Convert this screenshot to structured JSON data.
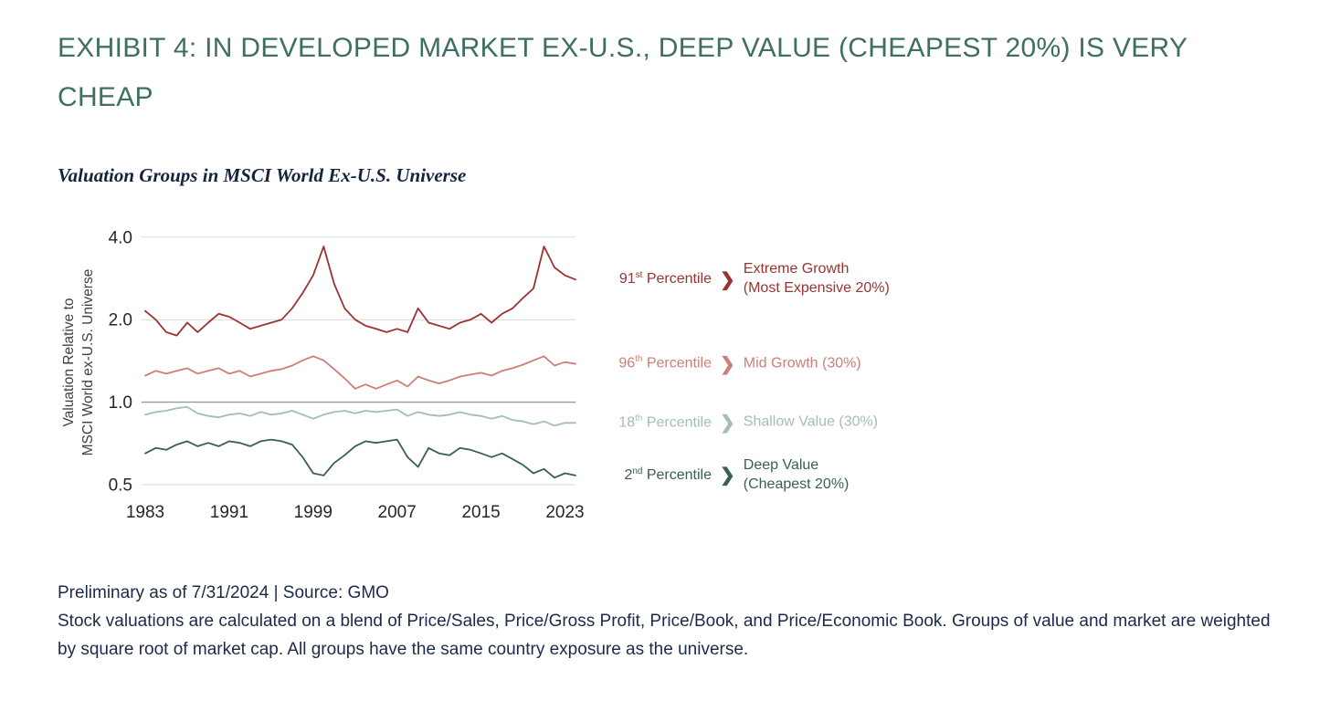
{
  "title": "EXHIBIT 4: IN DEVELOPED MARKET EX-U.S., DEEP VALUE (CHEAPEST 20%) IS VERY CHEAP",
  "subtitle": "Valuation Groups in MSCI World Ex-U.S. Universe",
  "footer": {
    "line1": "Preliminary as of 7/31/2024 | Source: GMO",
    "line2": "Stock valuations are calculated on a blend of Price/Sales, Price/Gross Profit, Price/Book, and Price/Economic Book. Groups of value and market are weighted by square root of market cap. All groups have the same country exposure as the universe."
  },
  "icons": {
    "chevron": "❯"
  },
  "chart_data": {
    "type": "line",
    "title": "Valuation Groups in MSCI World Ex-U.S. Universe",
    "ylabel": "Valuation Relative to MSCI World ex-U.S. Universe",
    "ylabel_lines": [
      "Valuation Relative to",
      "MSCI World ex-U.S. Universe"
    ],
    "y_scale": "log",
    "ylim": [
      0.47,
      4.15
    ],
    "yticks": [
      4.0,
      2.0,
      1.0,
      0.5
    ],
    "xlim": [
      1983,
      2024
    ],
    "xticks": [
      1983,
      1991,
      1999,
      2007,
      2015,
      2023
    ],
    "grid": "horizontal",
    "legend_position": "right-of-lines",
    "colors": {
      "grid": "#d9d9d9",
      "baseline_1x": "#8f9aad",
      "tick_text": "#262626"
    },
    "x": [
      1983,
      1984,
      1985,
      1986,
      1987,
      1988,
      1989,
      1990,
      1991,
      1992,
      1993,
      1994,
      1995,
      1996,
      1997,
      1998,
      1999,
      2000,
      2001,
      2002,
      2003,
      2004,
      2005,
      2006,
      2007,
      2008,
      2009,
      2010,
      2011,
      2012,
      2013,
      2014,
      2015,
      2016,
      2017,
      2018,
      2019,
      2020,
      2021,
      2022,
      2023,
      2024
    ],
    "series": [
      {
        "id": "extreme-growth",
        "name": "Extreme Growth (Most Expensive 20%)",
        "label_lines": [
          "Extreme Growth",
          "(Most Expensive 20%)"
        ],
        "percentile": {
          "number": "91",
          "suffix": "st",
          "word": "Percentile"
        },
        "color": "#9b3332",
        "values": [
          2.15,
          2.0,
          1.8,
          1.75,
          1.95,
          1.8,
          1.95,
          2.1,
          2.05,
          1.95,
          1.85,
          1.9,
          1.95,
          2.0,
          2.2,
          2.5,
          2.9,
          3.7,
          2.7,
          2.2,
          2.0,
          1.9,
          1.85,
          1.8,
          1.85,
          1.8,
          2.2,
          1.95,
          1.9,
          1.85,
          1.95,
          2.0,
          2.1,
          1.95,
          2.1,
          2.2,
          2.4,
          2.6,
          3.7,
          3.1,
          2.9,
          2.8
        ]
      },
      {
        "id": "mid-growth",
        "name": "Mid Growth (30%)",
        "label_lines": [
          "Mid Growth (30%)"
        ],
        "percentile": {
          "number": "96",
          "suffix": "th",
          "word": "Percentile"
        },
        "color": "#cc7f77",
        "values": [
          1.25,
          1.3,
          1.27,
          1.3,
          1.33,
          1.27,
          1.3,
          1.33,
          1.27,
          1.3,
          1.24,
          1.27,
          1.3,
          1.32,
          1.36,
          1.42,
          1.47,
          1.42,
          1.32,
          1.22,
          1.12,
          1.16,
          1.12,
          1.16,
          1.2,
          1.14,
          1.24,
          1.2,
          1.17,
          1.2,
          1.24,
          1.26,
          1.28,
          1.25,
          1.3,
          1.33,
          1.37,
          1.42,
          1.47,
          1.36,
          1.4,
          1.38
        ]
      },
      {
        "id": "shallow-value",
        "name": "Shallow Value (30%)",
        "label_lines": [
          "Shallow Value (30%)"
        ],
        "percentile": {
          "number": "18",
          "suffix": "th",
          "word": "Percentile"
        },
        "color": "#a3bfae",
        "values": [
          0.9,
          0.92,
          0.93,
          0.95,
          0.96,
          0.91,
          0.89,
          0.88,
          0.9,
          0.91,
          0.89,
          0.92,
          0.9,
          0.91,
          0.93,
          0.9,
          0.87,
          0.9,
          0.92,
          0.93,
          0.91,
          0.93,
          0.92,
          0.93,
          0.94,
          0.89,
          0.92,
          0.9,
          0.89,
          0.9,
          0.92,
          0.9,
          0.89,
          0.87,
          0.89,
          0.86,
          0.85,
          0.83,
          0.85,
          0.82,
          0.84,
          0.84
        ]
      },
      {
        "id": "deep-value",
        "name": "Deep Value (Cheapest 20%)",
        "label_lines": [
          "Deep Value",
          "(Cheapest 20%)"
        ],
        "percentile": {
          "number": "2",
          "suffix": "nd",
          "word": "Percentile"
        },
        "color": "#38604f",
        "values": [
          0.65,
          0.68,
          0.67,
          0.7,
          0.72,
          0.69,
          0.71,
          0.69,
          0.72,
          0.71,
          0.69,
          0.72,
          0.73,
          0.72,
          0.7,
          0.63,
          0.55,
          0.54,
          0.6,
          0.64,
          0.69,
          0.72,
          0.71,
          0.72,
          0.73,
          0.63,
          0.58,
          0.68,
          0.65,
          0.64,
          0.68,
          0.67,
          0.65,
          0.63,
          0.65,
          0.62,
          0.59,
          0.55,
          0.57,
          0.53,
          0.55,
          0.54
        ]
      }
    ]
  }
}
